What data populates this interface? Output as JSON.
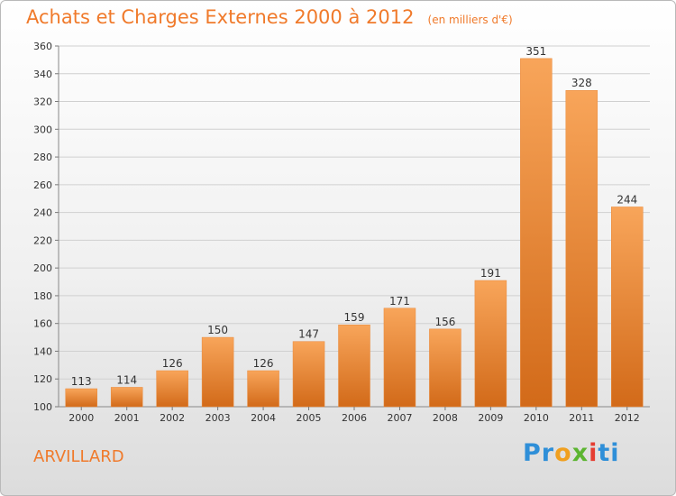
{
  "title": "Achats et Charges Externes 2000 à 2012",
  "subtitle": "(en milliers d'€)",
  "commune": "ARVILLARD",
  "logo": {
    "text": "Proxiti",
    "letters": [
      {
        "ch": "P",
        "color": "#2f8fd8"
      },
      {
        "ch": "r",
        "color": "#2f8fd8"
      },
      {
        "ch": "o",
        "color": "#f0a020"
      },
      {
        "ch": "x",
        "color": "#5cb531"
      },
      {
        "ch": "i",
        "color": "#e53d32"
      },
      {
        "ch": "t",
        "color": "#2f8fd8"
      },
      {
        "ch": "i",
        "color": "#2f8fd8"
      }
    ]
  },
  "colors": {
    "title": "#f07a2b",
    "bar_light": "#f8a55a",
    "bar_dark": "#d26a19",
    "grid": "#d0d0d0"
  },
  "chart_data": {
    "type": "bar",
    "categories": [
      "2000",
      "2001",
      "2002",
      "2003",
      "2004",
      "2005",
      "2006",
      "2007",
      "2008",
      "2009",
      "2010",
      "2011",
      "2012"
    ],
    "values": [
      113,
      114,
      126,
      150,
      126,
      147,
      159,
      171,
      156,
      191,
      351,
      328,
      244
    ],
    "yticks": [
      100,
      120,
      140,
      160,
      180,
      200,
      220,
      240,
      260,
      280,
      300,
      320,
      340,
      360
    ],
    "ylim": [
      100,
      360
    ],
    "grid": true,
    "legend": "none"
  }
}
